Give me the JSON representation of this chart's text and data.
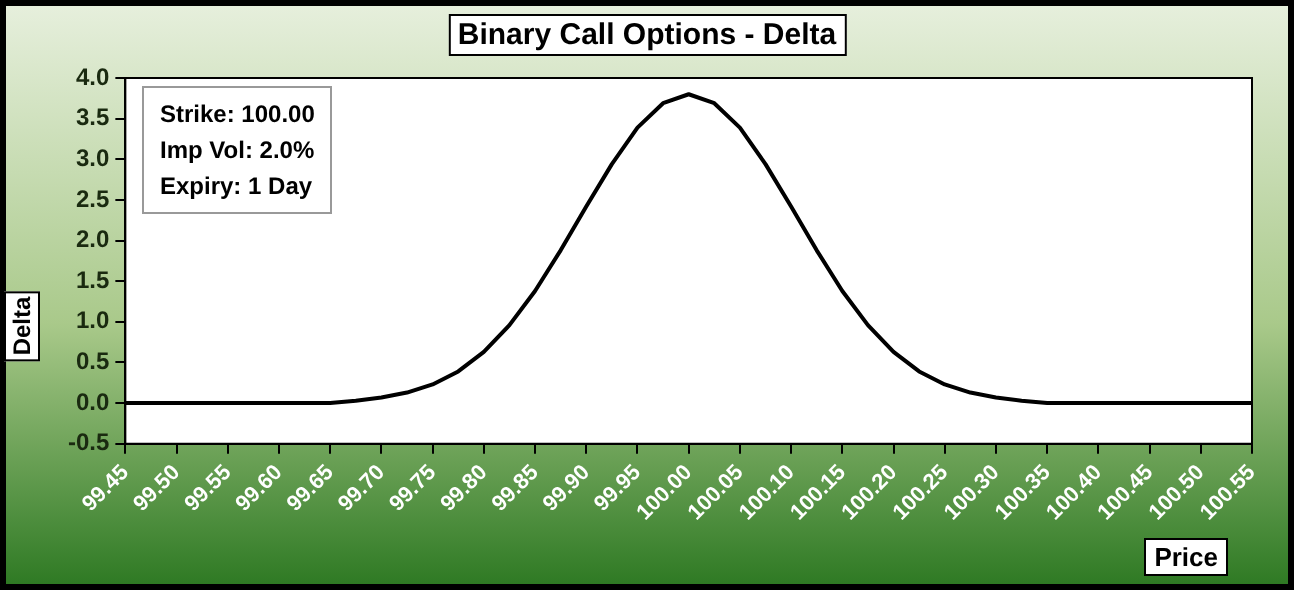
{
  "chart_data": {
    "type": "line",
    "title": "Binary Call Options  -  Delta",
    "xlabel": "Price",
    "ylabel": "Delta",
    "annotations": [
      "Strike: 100.00",
      "Imp Vol: 2.0%",
      "Expiry: 1 Day"
    ],
    "x": [
      99.45,
      99.475,
      99.5,
      99.525,
      99.55,
      99.575,
      99.6,
      99.625,
      99.65,
      99.675,
      99.7,
      99.725,
      99.75,
      99.775,
      99.8,
      99.825,
      99.85,
      99.875,
      99.9,
      99.925,
      99.95,
      99.975,
      100,
      100.025,
      100.05,
      100.075,
      100.1,
      100.125,
      100.15,
      100.175,
      100.2,
      100.225,
      100.25,
      100.275,
      100.3,
      100.325,
      100.35,
      100.375,
      100.4,
      100.425,
      100.45,
      100.475,
      100.5,
      100.525,
      100.55
    ],
    "values": [
      0,
      0,
      0,
      0,
      0,
      0,
      0,
      0,
      0,
      0.03,
      0.07,
      0.13,
      0.23,
      0.39,
      0.63,
      0.96,
      1.38,
      1.88,
      2.42,
      2.94,
      3.39,
      3.69,
      3.8,
      3.69,
      3.39,
      2.94,
      2.42,
      1.88,
      1.38,
      0.96,
      0.63,
      0.39,
      0.23,
      0.13,
      0.07,
      0.03,
      0,
      0,
      0,
      0,
      0,
      0,
      0,
      0,
      0
    ],
    "color": "#000000",
    "marker": "none",
    "line_style": "solid",
    "xlim": [
      99.45,
      100.55
    ],
    "xticks": [
      99.45,
      {
        "value": 99.5,
        "label": "99.50"
      },
      99.55,
      {
        "value": 99.6,
        "label": "99.60"
      },
      99.65,
      {
        "value": 99.7,
        "label": "99.70"
      },
      99.75,
      {
        "value": 99.8,
        "label": "99.80"
      },
      99.85,
      {
        "value": 99.9,
        "label": "99.90"
      },
      99.95,
      {
        "value": 100,
        "label": "100.00"
      },
      100.05,
      {
        "value": 100.1,
        "label": "100.10"
      },
      100.15,
      {
        "value": 100.2,
        "label": "100.20"
      },
      100.25,
      {
        "value": 100.3,
        "label": "100.30"
      },
      100.35,
      {
        "value": 100.4,
        "label": "100.40"
      },
      100.45,
      {
        "value": 100.5,
        "label": "100.50"
      },
      100.55
    ],
    "ylim": [
      -0.5,
      4
    ],
    "yticks": [
      -0.5,
      {
        "value": 0,
        "label": "0.0"
      },
      0.5,
      {
        "value": 1,
        "label": "1.0"
      },
      1.5,
      {
        "value": 2,
        "label": "2.0"
      },
      2.5,
      {
        "value": 3,
        "label": "3.0"
      },
      3.5,
      {
        "value": 4,
        "label": "4.0"
      }
    ]
  }
}
